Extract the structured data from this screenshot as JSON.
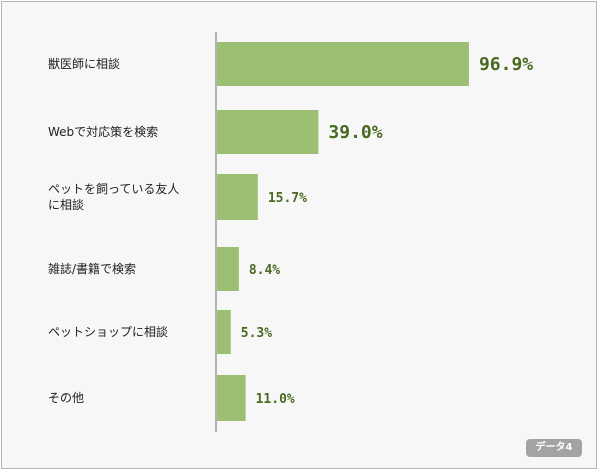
{
  "chart_data": {
    "type": "bar",
    "orientation": "horizontal",
    "categories": [
      "獣医師に相談",
      "Webで対応策を検索",
      "ペットを飼っている友人に相談",
      "雑誌/書籍で検索",
      "ペットショップに相談",
      "その他"
    ],
    "category_lines": [
      [
        "獣医師に相談"
      ],
      [
        "Webで対応策を検索"
      ],
      [
        "ペットを飼っている友人",
        "に相談"
      ],
      [
        "雑誌/書籍で検索"
      ],
      [
        "ペットショップに相談"
      ],
      [
        "その他"
      ]
    ],
    "values": [
      96.9,
      39.0,
      15.7,
      8.4,
      5.3,
      11.0
    ],
    "value_labels": [
      "96.9%",
      "39.0%",
      "15.7%",
      "8.4%",
      "5.3%",
      "11.0%"
    ],
    "xlim": [
      0,
      100
    ],
    "unit": "%",
    "grid": false,
    "bar_color": "#9dbf74",
    "label_color": "#4a6a22",
    "axis_color": "#6f6f6f"
  },
  "badge": {
    "label": "データ4"
  }
}
